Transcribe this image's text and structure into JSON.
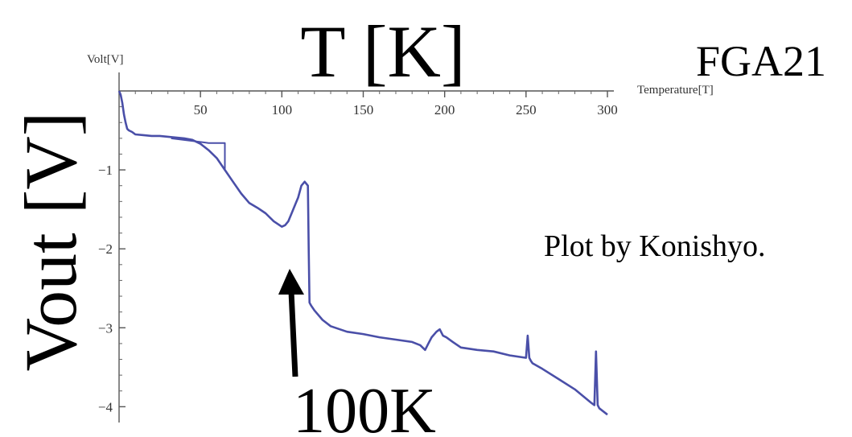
{
  "annotations": {
    "top_label": "T [K]",
    "left_label": "Vout [V]",
    "sample_name": "FGA21",
    "credit": "Plot by Konishyo.",
    "arrow_label": "100K"
  },
  "chart_data": {
    "type": "line",
    "ylabel": "Volt[V]",
    "xlabel": "Temperature[T]",
    "xlim": [
      0,
      300
    ],
    "ylim": [
      -4.2,
      0
    ],
    "x_ticks": [
      50,
      100,
      150,
      200,
      250,
      300
    ],
    "y_ticks": [
      -1,
      -2,
      -3,
      -4
    ],
    "grid": false,
    "line_color": "#4a4fa8",
    "series": [
      {
        "x": [
          0,
          1,
          2,
          3,
          4,
          5,
          6,
          8,
          10,
          15,
          20,
          25,
          30,
          40,
          45,
          50,
          55,
          60,
          65,
          70,
          75,
          80,
          85,
          90,
          95,
          100,
          102,
          104,
          106,
          108,
          110,
          112,
          114,
          116,
          116.5,
          117,
          117.5,
          118,
          120,
          125,
          130,
          140,
          150,
          160,
          170,
          180,
          185,
          188,
          190,
          192,
          195,
          197,
          199,
          201,
          205,
          210,
          220,
          230,
          240,
          250,
          251,
          252,
          253,
          254,
          260,
          270,
          280,
          290,
          292,
          293,
          294,
          295,
          300
        ],
        "y": [
          0,
          -0.05,
          -0.15,
          -0.3,
          -0.4,
          -0.48,
          -0.5,
          -0.52,
          -0.55,
          -0.56,
          -0.57,
          -0.57,
          -0.58,
          -0.6,
          -0.62,
          -0.67,
          -0.75,
          -0.85,
          -1.0,
          -1.15,
          -1.3,
          -1.42,
          -1.48,
          -1.55,
          -1.65,
          -1.72,
          -1.7,
          -1.65,
          -1.55,
          -1.45,
          -1.35,
          -1.2,
          -1.15,
          -1.2,
          -2.0,
          -2.68,
          -2.7,
          -2.72,
          -2.78,
          -2.9,
          -2.98,
          -3.05,
          -3.08,
          -3.12,
          -3.15,
          -3.18,
          -3.22,
          -3.28,
          -3.2,
          -3.12,
          -3.05,
          -3.02,
          -3.1,
          -3.12,
          -3.18,
          -3.25,
          -3.28,
          -3.3,
          -3.35,
          -3.38,
          -3.1,
          -3.38,
          -3.42,
          -3.45,
          -3.52,
          -3.65,
          -3.78,
          -3.95,
          -3.98,
          -3.3,
          -3.98,
          -4.02,
          -4.1
        ]
      },
      {
        "x": [
          32,
          55,
          65,
          65
        ],
        "y": [
          -0.6,
          -0.66,
          -0.66,
          -1.0
        ]
      }
    ]
  }
}
